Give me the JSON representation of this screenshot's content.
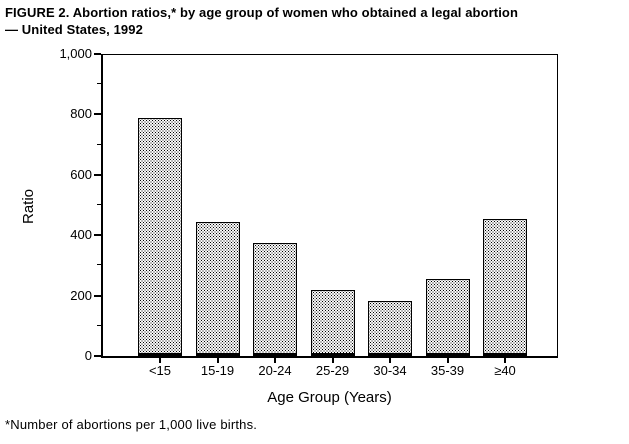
{
  "figure": {
    "title_line1": "FIGURE 2. Abortion ratios,* by age group of women who obtained a legal abortion",
    "title_line2": "— United States, 1992",
    "footnote": "*Number of abortions per 1,000 live births."
  },
  "chart_data": {
    "type": "bar",
    "title": "FIGURE 2. Abortion ratios,* by age group of women who obtained a legal abortion — United States, 1992",
    "categories": [
      "<15",
      "15-19",
      "20-24",
      "25-29",
      "30-34",
      "35-39",
      "≥40"
    ],
    "values": [
      790,
      445,
      375,
      220,
      183,
      257,
      455
    ],
    "xlabel": "Age Group (Years)",
    "ylabel": "Ratio",
    "ylim": [
      0,
      1000
    ],
    "y_tick_values": [
      0,
      200,
      400,
      600,
      800,
      1000
    ],
    "y_tick_labels": [
      "0",
      "200",
      "400",
      "600",
      "800",
      "1,000"
    ],
    "y_minor_tick_step": 100,
    "grid": false,
    "legend": "none",
    "bar_fill": "black-dot-stipple-on-white",
    "axis_color": "#000000",
    "background": "#ffffff"
  }
}
